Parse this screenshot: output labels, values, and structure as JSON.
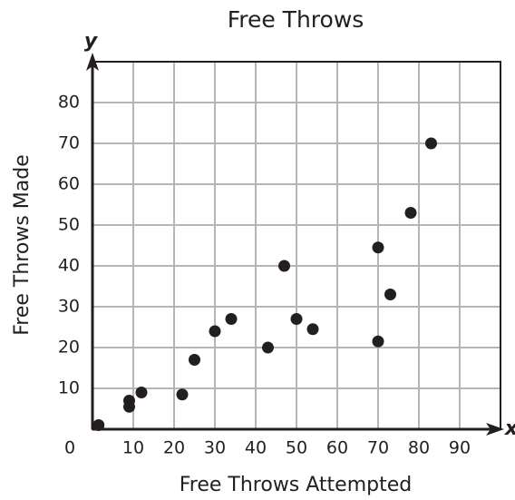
{
  "chart_data": {
    "type": "scatter",
    "title": "Free Throws",
    "x_label": "Free Throws Attempted",
    "y_label": "Free Throws Made",
    "x_axis_letter": "x",
    "y_axis_letter": "y",
    "x": [
      1.5,
      9,
      9,
      12,
      22,
      25,
      30,
      34,
      43,
      47,
      50,
      54,
      70,
      70,
      73,
      78,
      83
    ],
    "values": [
      1,
      7,
      5.5,
      9,
      8.5,
      17,
      24,
      27,
      20,
      40,
      27,
      24.5,
      44.5,
      21.5,
      33,
      53,
      70
    ],
    "color": "#231f20",
    "xlim": [
      0,
      100
    ],
    "ylim": [
      0,
      90
    ],
    "xticks": [
      0,
      10,
      20,
      30,
      40,
      50,
      60,
      70,
      80,
      90
    ],
    "yticks": [
      10,
      20,
      30,
      40,
      50,
      60,
      70,
      80
    ],
    "grid": true
  }
}
